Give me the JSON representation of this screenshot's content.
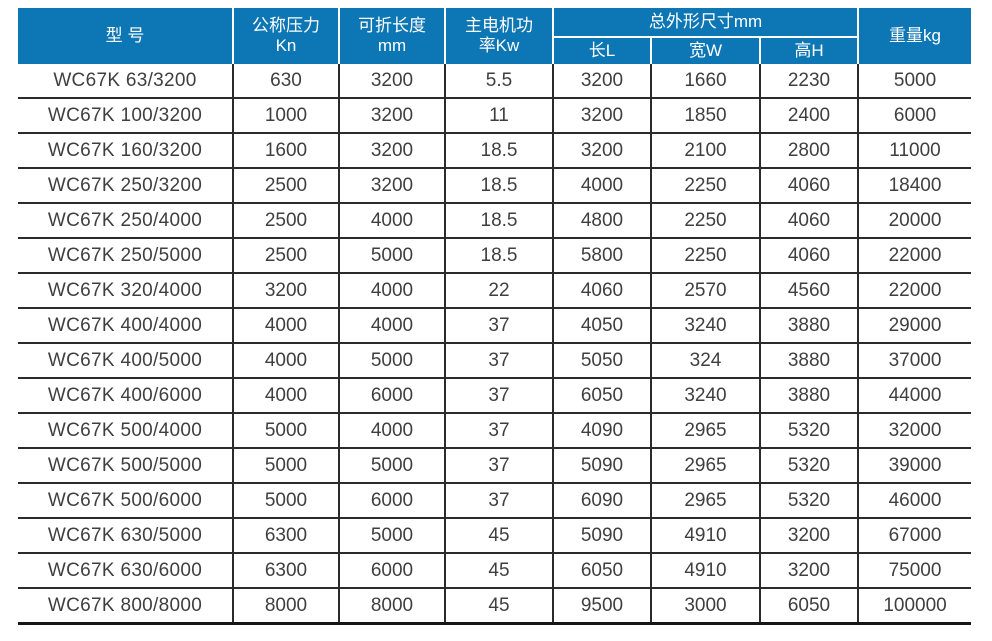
{
  "table": {
    "headers": {
      "model": "型 号",
      "pressure_line1": "公称压力",
      "pressure_line2": "Kn",
      "fold_length_line1": "可折长度",
      "fold_length_line2": "mm",
      "motor_line1": "主电机功",
      "motor_line2": "率Kw",
      "dimensions_group": "总外形尺寸mm",
      "dim_length": "长L",
      "dim_width": "宽W",
      "dim_height": "高H",
      "weight": "重量kg"
    },
    "column_keys": [
      "model",
      "pressure",
      "fold_length",
      "motor_power",
      "length",
      "width",
      "height",
      "weight"
    ],
    "rows": [
      {
        "model": "WC67K 63/3200",
        "pressure": "630",
        "fold_length": "3200",
        "motor_power": "5.5",
        "length": "3200",
        "width": "1660",
        "height": "2230",
        "weight": "5000"
      },
      {
        "model": "WC67K 100/3200",
        "pressure": "1000",
        "fold_length": "3200",
        "motor_power": "11",
        "length": "3200",
        "width": "1850",
        "height": "2400",
        "weight": "6000"
      },
      {
        "model": "WC67K 160/3200",
        "pressure": "1600",
        "fold_length": "3200",
        "motor_power": "18.5",
        "length": "3200",
        "width": "2100",
        "height": "2800",
        "weight": "11000"
      },
      {
        "model": "WC67K 250/3200",
        "pressure": "2500",
        "fold_length": "3200",
        "motor_power": "18.5",
        "length": "4000",
        "width": "2250",
        "height": "4060",
        "weight": "18400"
      },
      {
        "model": "WC67K 250/4000",
        "pressure": "2500",
        "fold_length": "4000",
        "motor_power": "18.5",
        "length": "4800",
        "width": "2250",
        "height": "4060",
        "weight": "20000"
      },
      {
        "model": "WC67K 250/5000",
        "pressure": "2500",
        "fold_length": "5000",
        "motor_power": "18.5",
        "length": "5800",
        "width": "2250",
        "height": "4060",
        "weight": "22000"
      },
      {
        "model": "WC67K 320/4000",
        "pressure": "3200",
        "fold_length": "4000",
        "motor_power": "22",
        "length": "4060",
        "width": "2570",
        "height": "4560",
        "weight": "22000"
      },
      {
        "model": "WC67K 400/4000",
        "pressure": "4000",
        "fold_length": "4000",
        "motor_power": "37",
        "length": "4050",
        "width": "3240",
        "height": "3880",
        "weight": "29000"
      },
      {
        "model": "WC67K 400/5000",
        "pressure": "4000",
        "fold_length": "5000",
        "motor_power": "37",
        "length": "5050",
        "width": "324",
        "height": "3880",
        "weight": "37000"
      },
      {
        "model": "WC67K 400/6000",
        "pressure": "4000",
        "fold_length": "6000",
        "motor_power": "37",
        "length": "6050",
        "width": "3240",
        "height": "3880",
        "weight": "44000"
      },
      {
        "model": "WC67K 500/4000",
        "pressure": "5000",
        "fold_length": "4000",
        "motor_power": "37",
        "length": "4090",
        "width": "2965",
        "height": "5320",
        "weight": "32000"
      },
      {
        "model": "WC67K 500/5000",
        "pressure": "5000",
        "fold_length": "5000",
        "motor_power": "37",
        "length": "5090",
        "width": "2965",
        "height": "5320",
        "weight": "39000"
      },
      {
        "model": "WC67K 500/6000",
        "pressure": "5000",
        "fold_length": "6000",
        "motor_power": "37",
        "length": "6090",
        "width": "2965",
        "height": "5320",
        "weight": "46000"
      },
      {
        "model": "WC67K 630/5000",
        "pressure": "6300",
        "fold_length": "5000",
        "motor_power": "45",
        "length": "5090",
        "width": "4910",
        "height": "3200",
        "weight": "67000"
      },
      {
        "model": "WC67K 630/6000",
        "pressure": "6300",
        "fold_length": "6000",
        "motor_power": "45",
        "length": "6050",
        "width": "4910",
        "height": "3200",
        "weight": "75000"
      },
      {
        "model": "WC67K 800/8000",
        "pressure": "8000",
        "fold_length": "8000",
        "motor_power": "45",
        "length": "9500",
        "width": "3000",
        "height": "6050",
        "weight": "100000"
      }
    ]
  },
  "colors": {
    "header_bg": "#0d76b4",
    "header_text": "#ffffff",
    "body_text": "#3f3f3f",
    "row_border": "#2b2b2b"
  }
}
